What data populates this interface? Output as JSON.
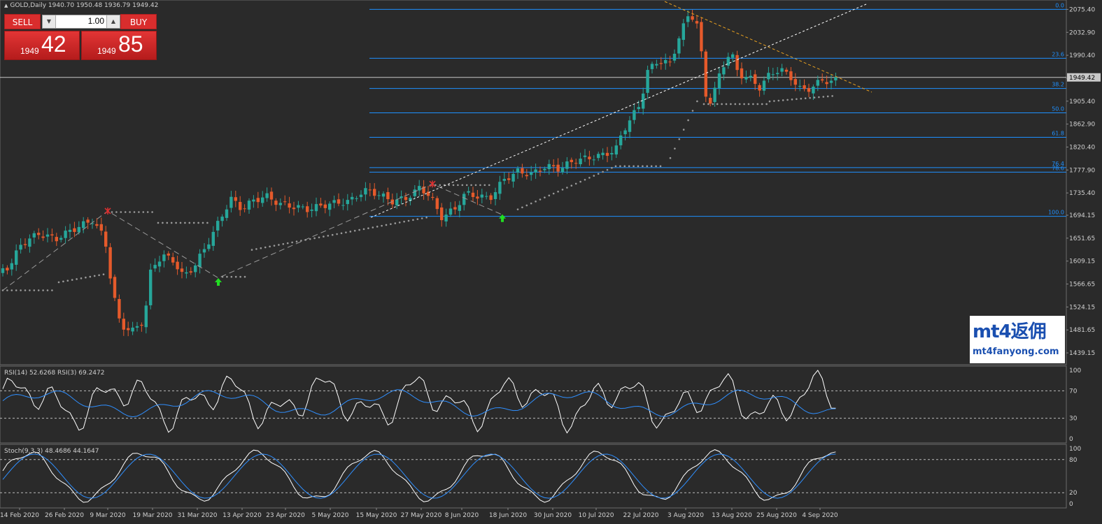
{
  "chart": {
    "symbol_line": "GOLD,Daily  1940.70 1950.48 1936.79 1949.42",
    "current_price_label": "1949.42"
  },
  "trade_panel": {
    "sell_label": "SELL",
    "buy_label": "BUY",
    "lot_value": "1.00",
    "bid_small": "1949",
    "bid_big": "42",
    "ask_small": "1949",
    "ask_big": "85"
  },
  "logo": {
    "line1": "mt4返佣",
    "line2": "mt4fanyong.com"
  },
  "price_axis": [
    "2075.40",
    "2032.90",
    "1990.40",
    "1947.90",
    "1905.40",
    "1862.90",
    "1820.40",
    "1777.90",
    "1735.40",
    "1694.15",
    "1651.65",
    "1609.15",
    "1566.65",
    "1524.15",
    "1481.65",
    "1439.15"
  ],
  "fib_levels": [
    {
      "label": "0.0",
      "price": 2075.4
    },
    {
      "label": "23.6",
      "price": 1984.9
    },
    {
      "label": "38.2",
      "price": 1928.9
    },
    {
      "label": "50.0",
      "price": 1883.7
    },
    {
      "label": "61.8",
      "price": 1838.4
    },
    {
      "label": "76.4",
      "price": 1782.4
    },
    {
      "label": "78.6",
      "price": 1774.0
    },
    {
      "label": "100.0",
      "price": 1692.0
    }
  ],
  "date_axis": [
    "14 Feb 2020",
    "26 Feb 2020",
    "9 Mar 2020",
    "19 Mar 2020",
    "31 Mar 2020",
    "13 Apr 2020",
    "23 Apr 2020",
    "5 May 2020",
    "15 May 2020",
    "27 May 2020",
    "8 Jun 2020",
    "18 Jun 2020",
    "30 Jun 2020",
    "10 Jul 2020",
    "22 Jul 2020",
    "3 Aug 2020",
    "13 Aug 2020",
    "25 Aug 2020",
    "4 Sep 2020"
  ],
  "rsi": {
    "label": "RSI(14) 52.6268  RSI(3) 69.2472",
    "axis": [
      "100",
      "70",
      "30",
      "0"
    ]
  },
  "stoch": {
    "label": "Stoch(9,3,3) 48.4686 44.1647",
    "axis": [
      "100",
      "80",
      "20",
      "0"
    ]
  },
  "colors": {
    "background": "#2a2a2a",
    "bull": "#26a69a",
    "bear": "#e55a2b",
    "fib": "#1e90ff",
    "sar": "#9a9a9a",
    "rsi_fast": "#ffffff",
    "rsi_slow": "#2f8fff"
  }
}
